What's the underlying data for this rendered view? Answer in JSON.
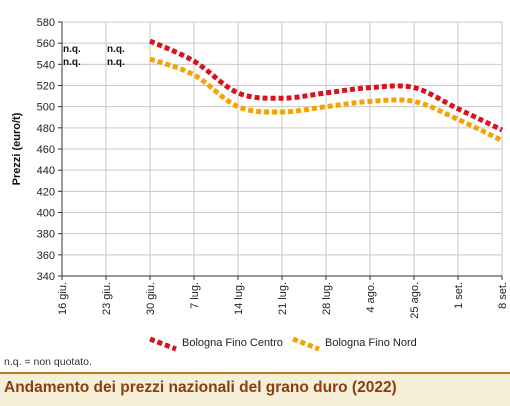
{
  "chart_data": {
    "type": "line",
    "title": "Andamento dei prezzi nazionali del grano duro (2022)",
    "xlabel": "",
    "ylabel": "Prezzi (euro/t)",
    "ylim": [
      340,
      580
    ],
    "yticks": [
      340,
      360,
      380,
      400,
      420,
      440,
      460,
      480,
      500,
      520,
      540,
      560,
      580
    ],
    "categories": [
      "16 giu.",
      "23 giu.",
      "30 giu.",
      "7 lug.",
      "14 lug.",
      "21 lug.",
      "28 lug.",
      "4 ago.",
      "25 ago.",
      "1 set.",
      "8 set."
    ],
    "series": [
      {
        "name": "Bologna Fino Centro",
        "color": "#d7141e",
        "values": [
          null,
          null,
          562,
          543,
          513,
          508,
          513,
          518,
          518,
          498,
          478
        ]
      },
      {
        "name": "Bologna Fino Nord",
        "color": "#f5a300",
        "values": [
          null,
          null,
          545,
          530,
          500,
          495,
          500,
          505,
          505,
          488,
          468
        ]
      }
    ],
    "not_quoted_labels": [
      {
        "category": "16 giu.",
        "texts": [
          "n.q.",
          "n.q."
        ]
      },
      {
        "category": "23 giu.",
        "texts": [
          "n.q.",
          "n.q."
        ]
      }
    ],
    "legend_position": "bottom",
    "grid": true,
    "footnote": "n.q. = non quotato."
  }
}
